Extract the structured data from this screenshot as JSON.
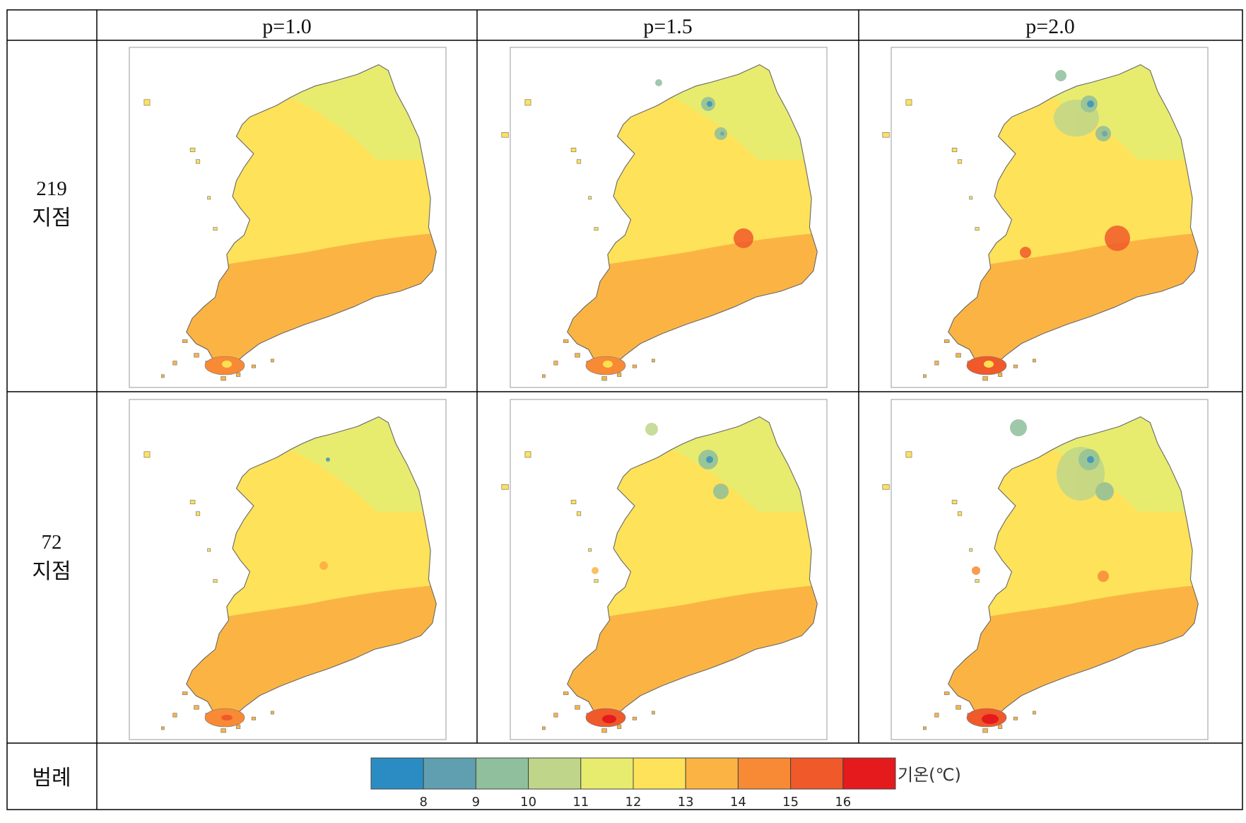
{
  "table": {
    "columns": [
      {
        "label": "p=1.0"
      },
      {
        "label": "p=1.5"
      },
      {
        "label": "p=2.0"
      }
    ],
    "rows": [
      {
        "number": "219",
        "unit": "지점"
      },
      {
        "number": "72",
        "unit": "지점"
      }
    ],
    "legend_row_label": "범례"
  },
  "legend": {
    "unit": "기온(℃)",
    "ticks": [
      "8",
      "9",
      "10",
      "11",
      "12",
      "13",
      "14",
      "15",
      "16"
    ],
    "colors": [
      "#2b8cc4",
      "#5f9fb0",
      "#8fbf9c",
      "#bfd68a",
      "#e8ec6e",
      "#fde25a",
      "#fbb443",
      "#f88a35",
      "#f0592a",
      "#e41a1c"
    ]
  },
  "maps": [
    {
      "row": 0,
      "col": 0,
      "idw_power": 1.0,
      "cold_spots": 0,
      "jeju_core": "#fbe14f"
    },
    {
      "row": 0,
      "col": 1,
      "idw_power": 1.5,
      "cold_spots": 1,
      "jeju_core": "#fbe14f"
    },
    {
      "row": 0,
      "col": 2,
      "idw_power": 2.0,
      "cold_spots": 2,
      "jeju_core": "#fbe14f"
    },
    {
      "row": 1,
      "col": 0,
      "idw_power": 1.0,
      "cold_spots": 0,
      "jeju_core": "#f0592a"
    },
    {
      "row": 1,
      "col": 1,
      "idw_power": 1.5,
      "cold_spots": 1,
      "jeju_core": "#e41a1c"
    },
    {
      "row": 1,
      "col": 2,
      "idw_power": 2.0,
      "cold_spots": 2,
      "jeju_core": "#e41a1c"
    }
  ]
}
